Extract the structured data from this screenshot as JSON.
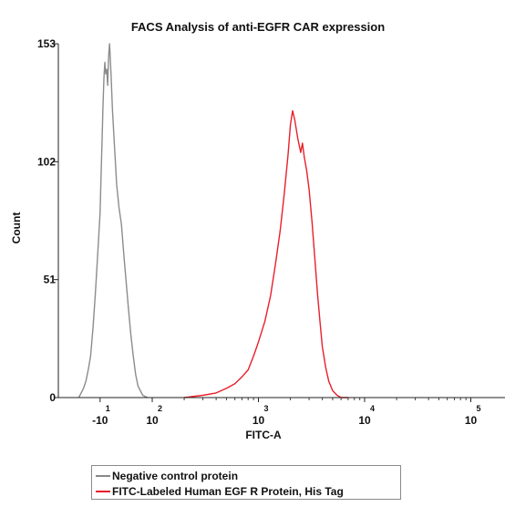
{
  "chart_data": {
    "type": "line",
    "title": "FACS Analysis of anti-EGFR CAR expression",
    "xlabel": "FITC-A",
    "ylabel": "Count",
    "x_scale": "biexponential",
    "ylim": [
      0,
      153
    ],
    "yticks": [
      "153",
      "102",
      "51",
      "0"
    ],
    "xticks": [
      {
        "base": "-10",
        "exp": "1",
        "value": -10
      },
      {
        "base": "10",
        "exp": "2",
        "value": 100
      },
      {
        "base": "10",
        "exp": "3",
        "value": 1000
      },
      {
        "base": "10",
        "exp": "4",
        "value": 10000
      },
      {
        "base": "10",
        "exp": "5",
        "value": 100000
      }
    ],
    "grid": false,
    "legend_placement": "bottom",
    "series": [
      {
        "name": "Negative control protein",
        "color": "#8c8c8c",
        "x": [
          -55,
          -50,
          -45,
          -40,
          -35,
          -30,
          -25,
          -20,
          -15,
          -10,
          -8,
          -6,
          -4,
          -2,
          0,
          2,
          4,
          6,
          8,
          10,
          13,
          16,
          20,
          25,
          30,
          35,
          40,
          45,
          50,
          55,
          60,
          65,
          70,
          75,
          80,
          90
        ],
        "y": [
          0,
          2,
          4,
          7,
          12,
          18,
          30,
          45,
          62,
          80,
          95,
          110,
          125,
          138,
          145,
          140,
          142,
          135,
          148,
          153,
          140,
          125,
          110,
          92,
          82,
          75,
          62,
          50,
          38,
          27,
          18,
          10,
          5,
          3,
          1,
          0
        ]
      },
      {
        "name": "FITC-Labeled Human EGF R Protein, His Tag",
        "color": "#e8202a",
        "x": [
          200,
          300,
          400,
          500,
          600,
          700,
          800,
          900,
          1000,
          1150,
          1300,
          1450,
          1600,
          1750,
          1900,
          2000,
          2100,
          2200,
          2350,
          2500,
          2600,
          2700,
          2850,
          3000,
          3200,
          3400,
          3600,
          3800,
          4000,
          4300,
          4600,
          5000,
          5500,
          6000,
          7000
        ],
        "y": [
          0,
          1,
          2,
          4,
          6,
          9,
          12,
          18,
          24,
          33,
          44,
          58,
          72,
          88,
          105,
          118,
          124,
          120,
          112,
          106,
          110,
          104,
          98,
          90,
          76,
          60,
          45,
          33,
          22,
          13,
          7,
          3,
          1,
          0,
          0
        ]
      }
    ]
  }
}
